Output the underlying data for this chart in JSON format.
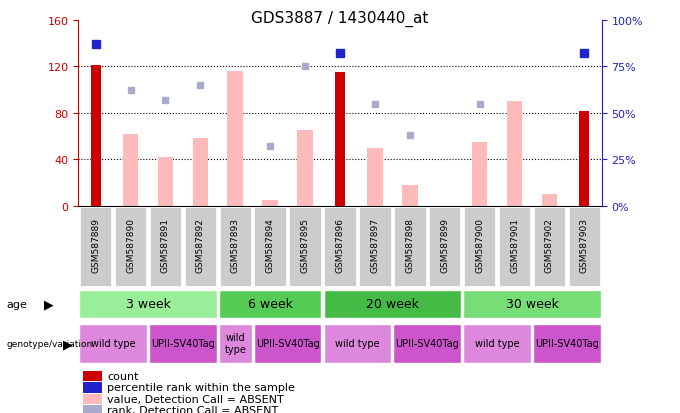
{
  "title": "GDS3887 / 1430440_at",
  "samples": [
    "GSM587889",
    "GSM587890",
    "GSM587891",
    "GSM587892",
    "GSM587893",
    "GSM587894",
    "GSM587895",
    "GSM587896",
    "GSM587897",
    "GSM587898",
    "GSM587899",
    "GSM587900",
    "GSM587901",
    "GSM587902",
    "GSM587903"
  ],
  "count_values": [
    121,
    0,
    0,
    0,
    0,
    0,
    0,
    115,
    0,
    0,
    0,
    0,
    0,
    0,
    82
  ],
  "count_color": "#cc0000",
  "percentile_rank_values": [
    87,
    0,
    0,
    0,
    0,
    0,
    0,
    82,
    0,
    0,
    0,
    0,
    0,
    0,
    82
  ],
  "percentile_rank_color": "#2222cc",
  "value_absent_values": [
    0,
    62,
    42,
    58,
    116,
    5,
    65,
    0,
    50,
    18,
    0,
    55,
    90,
    10,
    0
  ],
  "value_absent_color": "#ffbbbb",
  "rank_absent_values": [
    0,
    62,
    57,
    65,
    0,
    32,
    75,
    0,
    55,
    38,
    0,
    55,
    0,
    0,
    0
  ],
  "rank_absent_color": "#aaaacc",
  "ylim_left": [
    0,
    160
  ],
  "ylim_right": [
    0,
    100
  ],
  "yticks_left": [
    0,
    40,
    80,
    120,
    160
  ],
  "ytick_labels_left": [
    "0",
    "40",
    "80",
    "120",
    "160"
  ],
  "yticks_right": [
    0,
    25,
    50,
    75,
    100
  ],
  "ytick_labels_right": [
    "0%",
    "25%",
    "50%",
    "75%",
    "100%"
  ],
  "left_axis_color": "#cc0000",
  "right_axis_color": "#2222cc",
  "age_groups": [
    {
      "label": "3 week",
      "start": 0,
      "end": 4,
      "color": "#99ee99"
    },
    {
      "label": "6 week",
      "start": 4,
      "end": 7,
      "color": "#55cc55"
    },
    {
      "label": "20 week",
      "start": 7,
      "end": 11,
      "color": "#44bb44"
    },
    {
      "label": "30 week",
      "start": 11,
      "end": 15,
      "color": "#77dd77"
    }
  ],
  "genotype_groups": [
    {
      "label": "wild type",
      "start": 0,
      "end": 2,
      "color": "#dd88dd"
    },
    {
      "label": "UPII-SV40Tag",
      "start": 2,
      "end": 4,
      "color": "#cc55cc"
    },
    {
      "label": "wild\ntype",
      "start": 4,
      "end": 5,
      "color": "#dd88dd"
    },
    {
      "label": "UPII-SV40Tag",
      "start": 5,
      "end": 7,
      "color": "#cc55cc"
    },
    {
      "label": "wild type",
      "start": 7,
      "end": 9,
      "color": "#dd88dd"
    },
    {
      "label": "UPII-SV40Tag",
      "start": 9,
      "end": 11,
      "color": "#cc55cc"
    },
    {
      "label": "wild type",
      "start": 11,
      "end": 13,
      "color": "#dd88dd"
    },
    {
      "label": "UPII-SV40Tag",
      "start": 13,
      "end": 15,
      "color": "#cc55cc"
    }
  ],
  "legend_items": [
    {
      "label": "count",
      "color": "#cc0000"
    },
    {
      "label": "percentile rank within the sample",
      "color": "#2222cc"
    },
    {
      "label": "value, Detection Call = ABSENT",
      "color": "#ffbbbb"
    },
    {
      "label": "rank, Detection Call = ABSENT",
      "color": "#aaaacc"
    }
  ],
  "fig_width": 6.8,
  "fig_height": 4.14,
  "dpi": 100
}
